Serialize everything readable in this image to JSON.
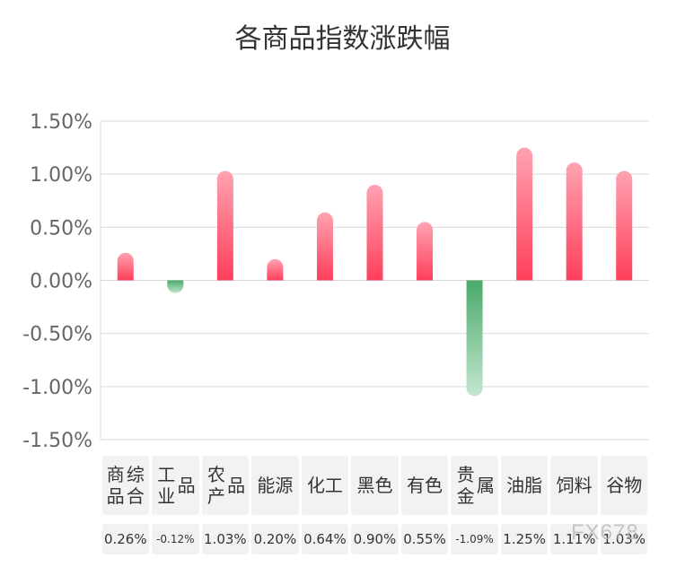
{
  "chart_data": {
    "type": "bar",
    "title": "各商品指数涨跌幅",
    "categories": [
      "商品综合",
      "工业品",
      "农产品",
      "能源",
      "化工",
      "黑色",
      "有色",
      "贵金属",
      "油脂",
      "饲料",
      "谷物"
    ],
    "category_lines": [
      [
        "商品",
        "综合"
      ],
      [
        "工业",
        "品"
      ],
      [
        "农产",
        "品"
      ],
      [
        "能源"
      ],
      [
        "化工"
      ],
      [
        "黑色"
      ],
      [
        "有色"
      ],
      [
        "贵金",
        "属"
      ],
      [
        "油脂"
      ],
      [
        "饲料"
      ],
      [
        "谷物"
      ]
    ],
    "values": [
      0.26,
      -0.12,
      1.03,
      0.2,
      0.64,
      0.9,
      0.55,
      -1.09,
      1.25,
      1.11,
      1.03
    ],
    "value_labels": [
      "0.26%",
      "-0.12%",
      "1.03%",
      "0.20%",
      "0.64%",
      "0.90%",
      "0.55%",
      "-1.09%",
      "1.25%",
      "1.11%",
      "1.03%"
    ],
    "yticks": [
      "1.50%",
      "1.00%",
      "0.50%",
      "0.00%",
      "-0.50%",
      "-1.00%",
      "-1.50%"
    ],
    "ytick_values": [
      1.5,
      1.0,
      0.5,
      0.0,
      -0.5,
      -1.0,
      -1.5
    ],
    "ylim": [
      -1.5,
      1.5
    ],
    "grid": true,
    "colors": {
      "positive_top": "#ffa3b1",
      "positive_bottom": "#ff3f5b",
      "negative_top": "#4aaa6b",
      "negative_bottom": "#c4e6cf",
      "grid": "#d9d9d9"
    }
  },
  "watermark": "FX678"
}
